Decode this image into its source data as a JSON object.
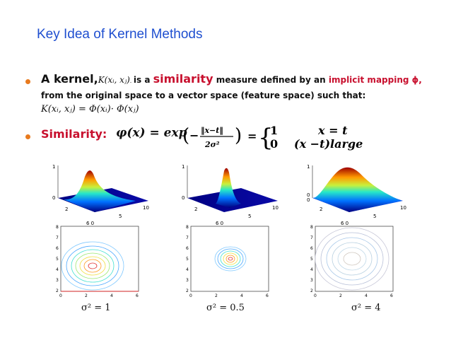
{
  "slide": {
    "title": "Key Idea of Kernel Methods",
    "bullet1": {
      "prefix": "A kernel,",
      "kernel_expr": "K(xᵢ, xⱼ)",
      "mid": "is a",
      "highlight1": "similarity",
      "mid2": "measure defined by an",
      "highlight2": "implicit mapping ϕ,",
      "line2": "from the original space to a vector space (feature space) such that:",
      "line3": "K(xᵢ, xⱼ) = Φ(xᵢ)· Φ(xⱼ)"
    },
    "bullet2": {
      "label": "Similarity:",
      "formula_left": "φ(x) = exp",
      "fraction_num": "‖x−t‖",
      "fraction_den": "2σ²",
      "case1_value": "1",
      "case1_cond": "x = t",
      "case2_value": "0",
      "case2_cond": "(x −t)large"
    },
    "surface_axis": {
      "z_top": "1",
      "z_bottom": "0",
      "z_bottom2": "0",
      "x_a": "2",
      "x_b": "5",
      "x_c": "10",
      "y_lab": "6 0"
    },
    "contour_axis": {
      "y_ticks": [
        "8",
        "7",
        "6",
        "5",
        "4",
        "3",
        "2"
      ],
      "x_ticks": [
        "0",
        "2",
        "4",
        "6"
      ]
    },
    "captions": [
      "σ² = 1",
      "σ² = 0.5",
      "σ² = 4"
    ],
    "colors": {
      "title": "#1f4fd0",
      "highlight": "#c8102e",
      "bullet": "#e87a1e"
    }
  }
}
